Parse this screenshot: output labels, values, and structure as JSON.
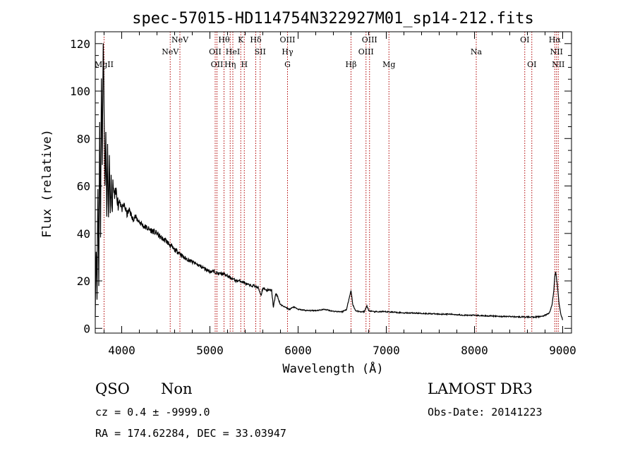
{
  "chart_data": {
    "type": "line",
    "title": "spec-57015-HD114754N322927M01_sp14-212.fits",
    "xlabel": "Wavelength (Å)",
    "ylabel": "Flux (relative)",
    "xlim": [
      3700,
      9100
    ],
    "ylim": [
      -2,
      125
    ],
    "x_ticks": [
      4000,
      5000,
      6000,
      7000,
      8000,
      9000
    ],
    "x_tick_labels": [
      "4000",
      "5000",
      "6000",
      "7000",
      "8000",
      "9000"
    ],
    "y_ticks": [
      0,
      20,
      40,
      60,
      80,
      100,
      120
    ],
    "y_tick_labels": [
      "0",
      "20",
      "40",
      "60",
      "80",
      "100",
      "120"
    ],
    "line_color": "#000000",
    "marker_color": "#b00000",
    "series": [
      {
        "name": "flux",
        "x": [
          3700,
          3710,
          3720,
          3730,
          3740,
          3750,
          3760,
          3770,
          3780,
          3790,
          3800,
          3810,
          3820,
          3830,
          3840,
          3850,
          3860,
          3870,
          3880,
          3890,
          3900,
          3920,
          3940,
          3960,
          3980,
          4000,
          4030,
          4060,
          4090,
          4120,
          4150,
          4200,
          4250,
          4300,
          4350,
          4400,
          4450,
          4500,
          4550,
          4600,
          4650,
          4700,
          4750,
          4800,
          4850,
          4900,
          4950,
          5000,
          5050,
          5100,
          5150,
          5200,
          5250,
          5300,
          5350,
          5400,
          5450,
          5500,
          5550,
          5580,
          5600,
          5650,
          5700,
          5720,
          5750,
          5780,
          5800,
          5850,
          5900,
          5950,
          6000,
          6100,
          6200,
          6300,
          6400,
          6500,
          6550,
          6580,
          6600,
          6620,
          6650,
          6700,
          6750,
          6780,
          6800,
          6850,
          6900,
          7000,
          7100,
          7200,
          7300,
          7400,
          7500,
          7600,
          7700,
          7800,
          7900,
          8000,
          8100,
          8200,
          8300,
          8400,
          8500,
          8600,
          8700,
          8750,
          8800,
          8850,
          8880,
          8900,
          8910,
          8920,
          8940,
          8960,
          8980,
          9000
        ],
        "values": [
          8,
          35,
          12,
          60,
          20,
          85,
          40,
          105,
          70,
          122,
          95,
          60,
          80,
          50,
          75,
          45,
          70,
          50,
          62,
          48,
          60,
          55,
          58,
          52,
          55,
          50,
          52,
          48,
          50,
          46,
          47,
          45,
          43,
          42,
          41,
          40,
          38,
          37,
          35,
          33,
          32,
          30,
          29,
          28,
          27,
          26,
          25,
          24,
          24,
          23,
          23,
          22,
          21,
          20,
          20,
          19,
          18,
          18,
          17,
          14,
          17,
          16,
          16,
          9,
          15,
          12,
          10,
          9,
          8,
          9,
          8,
          7.5,
          7.5,
          8,
          7.2,
          7,
          8,
          13,
          16,
          10,
          7.5,
          7,
          7,
          9.5,
          7.5,
          7,
          7,
          7,
          6.8,
          6.5,
          6.5,
          6.3,
          6.2,
          6,
          6,
          5.8,
          5.5,
          5.5,
          5.3,
          5.2,
          5,
          5,
          4.8,
          4.8,
          4.8,
          5,
          5.5,
          6.5,
          10,
          16,
          22,
          24,
          18,
          10,
          6,
          3.5
        ]
      }
    ],
    "lines": [
      {
        "label": "MgII",
        "wavelength": 3800,
        "row": 3
      },
      {
        "label": "NeV",
        "wavelength": 4550,
        "row": 2
      },
      {
        "label": "NeV",
        "wavelength": 4660,
        "row": 1
      },
      {
        "label": "OII",
        "wavelength": 5060,
        "row": 2
      },
      {
        "label": "OII",
        "wavelength": 5080,
        "row": 3
      },
      {
        "label": "Hθ",
        "wavelength": 5160,
        "row": 1
      },
      {
        "label": "Hη",
        "wavelength": 5230,
        "row": 3
      },
      {
        "label": "HeI",
        "wavelength": 5260,
        "row": 2
      },
      {
        "label": "K",
        "wavelength": 5350,
        "row": 1
      },
      {
        "label": "H",
        "wavelength": 5390,
        "row": 3
      },
      {
        "label": "Hδ",
        "wavelength": 5520,
        "row": 1
      },
      {
        "label": "SII",
        "wavelength": 5570,
        "row": 2
      },
      {
        "label": "OIII",
        "wavelength": 5880,
        "row": 1
      },
      {
        "label": "Hγ",
        "wavelength": 5880,
        "row": 2
      },
      {
        "label": "G",
        "wavelength": 5880,
        "row": 3
      },
      {
        "label": "Hβ",
        "wavelength": 6600,
        "row": 3
      },
      {
        "label": "OIII",
        "wavelength": 6770,
        "row": 2
      },
      {
        "label": "OIII",
        "wavelength": 6810,
        "row": 1
      },
      {
        "label": "Mg",
        "wavelength": 7030,
        "row": 3
      },
      {
        "label": "Na",
        "wavelength": 8020,
        "row": 2
      },
      {
        "label": "OI",
        "wavelength": 8570,
        "row": 1
      },
      {
        "label": "OI",
        "wavelength": 8650,
        "row": 3
      },
      {
        "label": "Hα",
        "wavelength": 8910,
        "row": 1
      },
      {
        "label": "NII",
        "wavelength": 8930,
        "row": 2
      },
      {
        "label": "NII",
        "wavelength": 8950,
        "row": 3
      }
    ]
  },
  "info": {
    "class": "QSO",
    "subclass": "Non",
    "survey": "LAMOST DR3",
    "cz": "cz = 0.4 ± -9999.0",
    "obs_date": "Obs-Date: 20141223",
    "coords": "RA = 174.62284, DEC =  33.03947"
  }
}
